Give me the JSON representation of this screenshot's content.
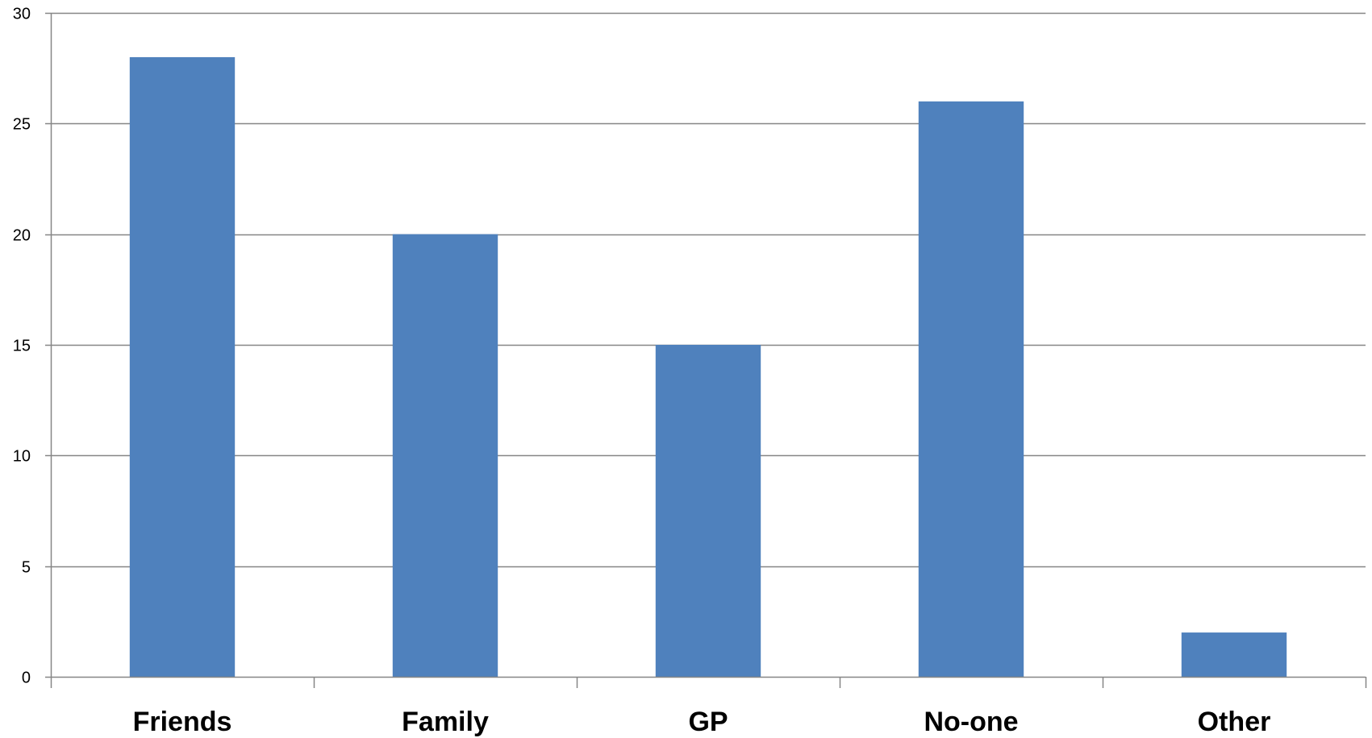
{
  "chart_data": {
    "type": "bar",
    "categories": [
      "Friends",
      "Family",
      "GP",
      "No-one",
      "Other"
    ],
    "values": [
      28,
      20,
      15,
      26,
      2
    ],
    "ylim": [
      0,
      30
    ],
    "yticks": [
      0,
      5,
      10,
      15,
      20,
      25,
      30
    ],
    "grid": true,
    "legend": "none",
    "bar_color": "#4f81bd",
    "grid_color": "#868686",
    "axis_color": "#868686",
    "title": "",
    "xlabel": "",
    "ylabel": ""
  }
}
